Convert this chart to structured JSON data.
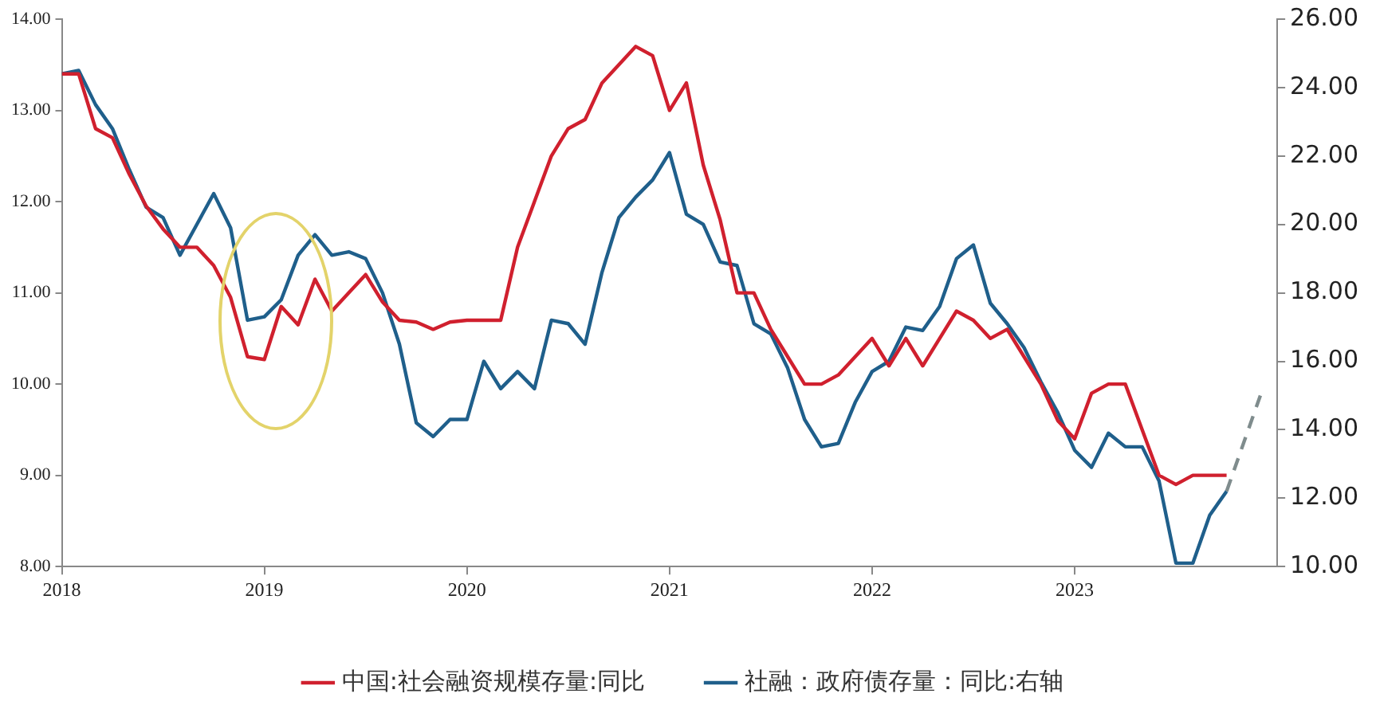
{
  "chart_data": {
    "type": "line",
    "x": [
      "2018-01",
      "2018-02",
      "2018-03",
      "2018-04",
      "2018-05",
      "2018-06",
      "2018-07",
      "2018-08",
      "2018-09",
      "2018-10",
      "2018-11",
      "2018-12",
      "2019-01",
      "2019-02",
      "2019-03",
      "2019-04",
      "2019-05",
      "2019-06",
      "2019-07",
      "2019-08",
      "2019-09",
      "2019-10",
      "2019-11",
      "2019-12",
      "2020-01",
      "2020-02",
      "2020-03",
      "2020-04",
      "2020-05",
      "2020-06",
      "2020-07",
      "2020-08",
      "2020-09",
      "2020-10",
      "2020-11",
      "2020-12",
      "2021-01",
      "2021-02",
      "2021-03",
      "2021-04",
      "2021-05",
      "2021-06",
      "2021-07",
      "2021-08",
      "2021-09",
      "2021-10",
      "2021-11",
      "2021-12",
      "2022-01",
      "2022-02",
      "2022-03",
      "2022-04",
      "2022-05",
      "2022-06",
      "2022-07",
      "2022-08",
      "2022-09",
      "2022-10",
      "2022-11",
      "2022-12",
      "2023-01",
      "2023-02",
      "2023-03",
      "2023-04",
      "2023-05",
      "2023-06",
      "2023-07",
      "2023-08",
      "2023-09",
      "2023-10"
    ],
    "series": [
      {
        "name": "中国:社会融资规模存量:同比",
        "color": "#d0202e",
        "values": [
          13.4,
          13.4,
          12.8,
          12.7,
          12.3,
          11.95,
          11.7,
          11.5,
          11.5,
          11.3,
          10.95,
          10.3,
          10.27,
          10.85,
          10.65,
          11.15,
          10.8,
          11.0,
          11.2,
          10.9,
          10.7,
          10.68,
          10.6,
          10.68,
          10.7,
          10.7,
          10.7,
          11.5,
          12.0,
          12.5,
          12.8,
          12.9,
          13.3,
          13.5,
          13.7,
          13.6,
          13.0,
          13.3,
          12.4,
          11.8,
          11.0,
          11.0,
          10.6,
          10.3,
          10.0,
          10.0,
          10.1,
          10.3,
          10.5,
          10.2,
          10.5,
          10.2,
          10.5,
          10.8,
          10.7,
          10.5,
          10.6,
          10.3,
          10.0,
          9.6,
          9.4,
          9.9,
          10.0,
          10.0,
          9.5,
          9.0,
          8.9,
          9.0,
          9.0,
          9.0
        ]
      },
      {
        "name": "社融：政府债存量：同比:右轴",
        "color": "#1f5f8b",
        "axis": "y2",
        "values": [
          24.4,
          24.5,
          23.5,
          22.8,
          21.6,
          20.5,
          20.2,
          19.1,
          20.0,
          20.9,
          19.9,
          17.2,
          17.3,
          17.8,
          19.1,
          19.7,
          19.1,
          19.2,
          19.0,
          18.0,
          16.5,
          14.2,
          13.8,
          14.3,
          14.3,
          16.0,
          15.2,
          15.7,
          15.2,
          17.2,
          17.1,
          16.5,
          18.6,
          20.2,
          20.8,
          21.3,
          22.1,
          20.3,
          20.0,
          18.9,
          18.8,
          17.1,
          16.8,
          15.8,
          14.3,
          13.5,
          13.6,
          14.8,
          15.7,
          16.0,
          17.0,
          16.9,
          17.6,
          19.0,
          19.4,
          17.7,
          17.1,
          16.4,
          15.4,
          14.5,
          13.4,
          12.9,
          13.9,
          13.5,
          13.5,
          12.5,
          10.1,
          10.1,
          11.5,
          12.2
        ]
      },
      {
        "color": "#7f8c8d",
        "axis": "y2",
        "line_style": "dashed",
        "x": [
          "2023-10",
          "2023-12"
        ],
        "values": [
          12.2,
          15.0
        ]
      }
    ],
    "xlim": [
      "2018",
      "2024"
    ],
    "xticks": [
      "2018",
      "2019",
      "2020",
      "2021",
      "2022",
      "2023"
    ],
    "ylim": [
      8,
      14
    ],
    "yticks": [
      {
        "value": 8,
        "label": "8.00"
      },
      {
        "value": 9,
        "label": "9.00"
      },
      {
        "value": 10,
        "label": "10.00"
      },
      {
        "value": 11,
        "label": "11.00"
      },
      {
        "value": 12,
        "label": "12.00"
      },
      {
        "value": 13,
        "label": "13.00"
      },
      {
        "value": 14,
        "label": "14.00"
      }
    ],
    "y2lim": [
      10,
      26
    ],
    "y2ticks": [
      {
        "value": 10,
        "label": "10.00"
      },
      {
        "value": 12,
        "label": "12.00"
      },
      {
        "value": 14,
        "label": "14.00"
      },
      {
        "value": 16,
        "label": "16.00"
      },
      {
        "value": 18,
        "label": "18.00"
      },
      {
        "value": 20,
        "label": "20.00"
      },
      {
        "value": 22,
        "label": "22.00"
      },
      {
        "value": 24,
        "label": "24.00"
      },
      {
        "value": 26,
        "label": "26.00"
      }
    ],
    "grid": false,
    "legend": "bottom",
    "marker": "none",
    "line_style": "solid"
  }
}
